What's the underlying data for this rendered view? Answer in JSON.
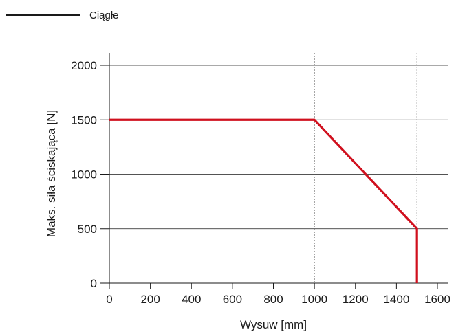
{
  "legend": {
    "series_label": "Ciągłe"
  },
  "chart_data": {
    "type": "line",
    "xlabel": "Wysuw [mm]",
    "ylabel": "Maks. siła ściskająca [N]",
    "xlim": [
      0,
      1650
    ],
    "ylim": [
      0,
      2000
    ],
    "x_ticks": [
      0,
      200,
      400,
      600,
      800,
      1000,
      1200,
      1400,
      1600
    ],
    "y_ticks": [
      0,
      500,
      1000,
      1500,
      2000
    ],
    "y_gridlines": [
      500,
      1000,
      1500,
      2000
    ],
    "x_reference_lines": [
      1000,
      1500
    ],
    "legend_position": "top-left",
    "series": [
      {
        "color": "#d0101e",
        "x": [
          0,
          1000,
          1500,
          1500
        ],
        "y": [
          1500,
          1500,
          500,
          0
        ]
      }
    ]
  }
}
